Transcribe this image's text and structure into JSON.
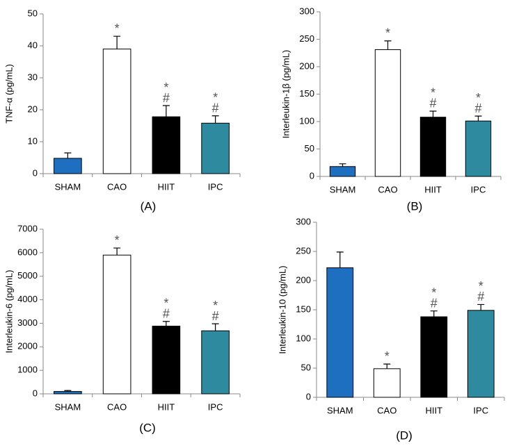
{
  "chart_data": [
    {
      "type": "bar",
      "panel": "(A)",
      "ylabel": "TNF-α (pg/mL)",
      "categories": [
        "SHAM",
        "CAO",
        "HIIT",
        "IPC"
      ],
      "values": [
        4.8,
        39,
        17.8,
        15.8
      ],
      "errors": [
        1.7,
        4,
        3.5,
        2.3
      ],
      "colors": [
        "#1f6fc0",
        "#ffffff",
        "#000000",
        "#2e8a9e"
      ],
      "annotations": [
        [],
        [
          "*"
        ],
        [
          "*",
          "#"
        ],
        [
          "*",
          "#"
        ]
      ],
      "ylim": [
        0,
        50
      ],
      "yticks": [
        0,
        10,
        20,
        30,
        40,
        50
      ]
    },
    {
      "type": "bar",
      "panel": "(B)",
      "ylabel": "Interleukin-1β (pg/mL)",
      "categories": [
        "SHAM",
        "CAO",
        "HIIT",
        "IPC"
      ],
      "values": [
        18,
        231,
        108,
        101
      ],
      "errors": [
        5,
        16,
        11,
        9
      ],
      "colors": [
        "#1f6fc0",
        "#ffffff",
        "#000000",
        "#2e8a9e"
      ],
      "annotations": [
        [],
        [
          "*"
        ],
        [
          "*",
          "#"
        ],
        [
          "*",
          "#"
        ]
      ],
      "ylim": [
        0,
        300
      ],
      "yticks": [
        0,
        50,
        100,
        150,
        200,
        250,
        300
      ]
    },
    {
      "type": "bar",
      "panel": "(C)",
      "ylabel": "Interleukin-6 (pg/mL)",
      "categories": [
        "SHAM",
        "CAO",
        "HIIT",
        "IPC"
      ],
      "values": [
        100,
        5900,
        2880,
        2680
      ],
      "errors": [
        40,
        300,
        200,
        300
      ],
      "colors": [
        "#1f6fc0",
        "#ffffff",
        "#000000",
        "#2e8a9e"
      ],
      "annotations": [
        [],
        [
          "*"
        ],
        [
          "*",
          "#"
        ],
        [
          "*",
          "#"
        ]
      ],
      "ylim": [
        0,
        7000
      ],
      "yticks": [
        0,
        1000,
        2000,
        3000,
        4000,
        5000,
        6000,
        7000
      ]
    },
    {
      "type": "bar",
      "panel": "(D)",
      "ylabel": "Interleukin-10 (pg/mL)",
      "categories": [
        "SHAM",
        "CAO",
        "HIIT",
        "IPC"
      ],
      "values": [
        222,
        49,
        138,
        149
      ],
      "errors": [
        27,
        8,
        10,
        10
      ],
      "colors": [
        "#1f6fc0",
        "#ffffff",
        "#000000",
        "#2e8a9e"
      ],
      "annotations": [
        [],
        [
          "*"
        ],
        [
          "*",
          "#"
        ],
        [
          "*",
          "#"
        ]
      ],
      "ylim": [
        0,
        300
      ],
      "yticks": [
        0,
        50,
        100,
        150,
        200,
        250,
        300
      ]
    }
  ]
}
